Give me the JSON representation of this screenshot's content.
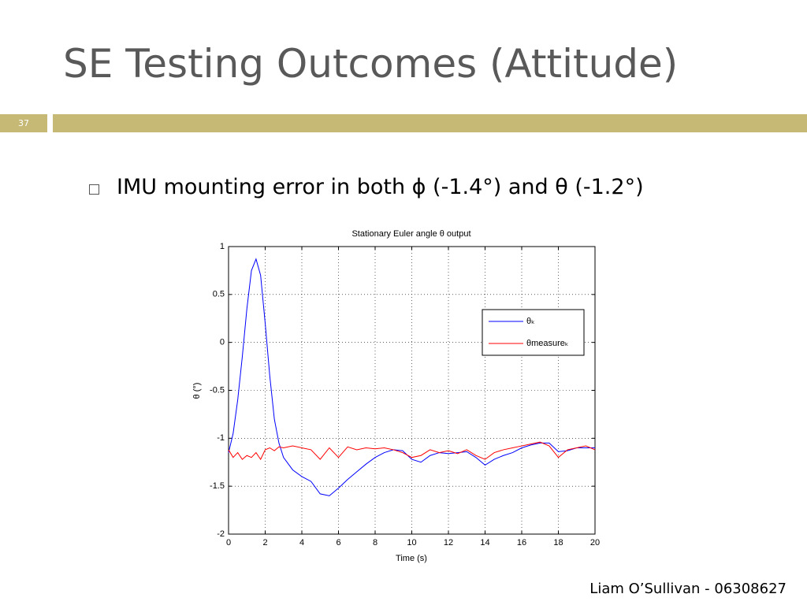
{
  "slide": {
    "title": "SE Testing Outcomes (Attitude)",
    "number": "37",
    "bullet": "IMU mounting error in both ϕ (-1.4°) and θ (-1.2°)",
    "footer": "Liam O’Sullivan - 06308627"
  },
  "chart_data": {
    "type": "line",
    "title": "Stationary Euler angle θ output",
    "xlabel": "Time (s)",
    "ylabel": "θ (°)",
    "x": [
      0,
      0.25,
      0.5,
      0.75,
      1,
      1.25,
      1.5,
      1.75,
      2,
      2.25,
      2.5,
      2.75,
      3,
      3.5,
      4,
      4.5,
      5,
      5.5,
      6,
      6.5,
      7,
      7.5,
      8,
      8.5,
      9,
      9.5,
      10,
      10.5,
      11,
      11.5,
      12,
      12.5,
      13,
      13.5,
      14,
      14.5,
      15,
      15.5,
      16,
      16.5,
      17,
      17.5,
      18,
      18.5,
      19,
      19.5,
      20
    ],
    "series": [
      {
        "name": "θₖ",
        "color": "#0000ff",
        "values": [
          -1.15,
          -0.95,
          -0.6,
          -0.15,
          0.35,
          0.75,
          0.87,
          0.7,
          0.2,
          -0.35,
          -0.8,
          -1.05,
          -1.2,
          -1.33,
          -1.4,
          -1.45,
          -1.58,
          -1.6,
          -1.52,
          -1.43,
          -1.35,
          -1.27,
          -1.2,
          -1.15,
          -1.12,
          -1.13,
          -1.22,
          -1.25,
          -1.18,
          -1.15,
          -1.16,
          -1.15,
          -1.14,
          -1.2,
          -1.28,
          -1.22,
          -1.18,
          -1.15,
          -1.1,
          -1.07,
          -1.05,
          -1.05,
          -1.14,
          -1.13,
          -1.1,
          -1.1,
          -1.1
        ]
      },
      {
        "name": "θmeasureₖ",
        "color": "#ff0000",
        "values": [
          -1.12,
          -1.2,
          -1.15,
          -1.22,
          -1.18,
          -1.2,
          -1.15,
          -1.22,
          -1.12,
          -1.1,
          -1.13,
          -1.09,
          -1.1,
          -1.08,
          -1.1,
          -1.12,
          -1.22,
          -1.1,
          -1.2,
          -1.09,
          -1.12,
          -1.1,
          -1.11,
          -1.1,
          -1.12,
          -1.15,
          -1.2,
          -1.18,
          -1.12,
          -1.15,
          -1.13,
          -1.16,
          -1.12,
          -1.18,
          -1.22,
          -1.15,
          -1.12,
          -1.1,
          -1.08,
          -1.06,
          -1.04,
          -1.08,
          -1.2,
          -1.12,
          -1.1,
          -1.08,
          -1.12
        ]
      }
    ],
    "xlim": [
      0,
      20
    ],
    "xticks": [
      0,
      2,
      4,
      6,
      8,
      10,
      12,
      14,
      16,
      18,
      20
    ],
    "ylim": [
      -2,
      1
    ],
    "yticks": [
      -2,
      -1.5,
      -1,
      -0.5,
      0,
      0.5,
      1
    ],
    "grid": true,
    "legend": "upper right"
  }
}
